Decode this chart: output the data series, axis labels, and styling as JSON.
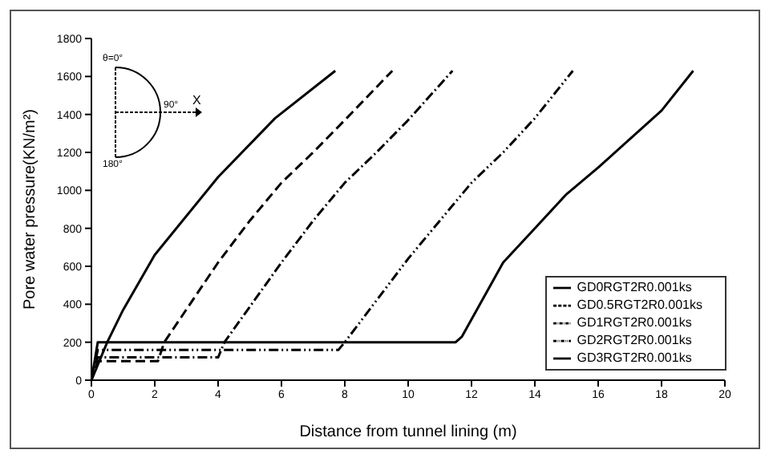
{
  "chart_data": {
    "type": "line",
    "xlabel": "Distance from tunnel lining (m)",
    "ylabel": "Pore water pressure(KN/m²)",
    "xlim": [
      0,
      20
    ],
    "xticks": [
      0,
      2,
      4,
      6,
      8,
      10,
      12,
      14,
      16,
      18,
      20
    ],
    "ylim": [
      0,
      1800
    ],
    "yticks": [
      0,
      200,
      400,
      600,
      800,
      1000,
      1200,
      1400,
      1600,
      1800
    ],
    "legend": "bottom right",
    "marker": "none",
    "annotations": [
      "θ=0°",
      "90°",
      "X",
      "180°"
    ],
    "series": [
      {
        "name": "GD0RGT2R0.001ks",
        "color": "#000000",
        "line_style": "solid",
        "x": [
          0,
          0.5,
          1,
          2,
          4,
          5.8,
          7.7
        ],
        "values": [
          0,
          200,
          370,
          660,
          1070,
          1380,
          1630
        ]
      },
      {
        "name": "GD0.5RGT2R0.001ks",
        "color": "#000000",
        "line_style": "dashed",
        "x": [
          0,
          0.2,
          2.1,
          2.3,
          4,
          5,
          6,
          7,
          8,
          9.5
        ],
        "values": [
          0,
          100,
          100,
          200,
          620,
          840,
          1040,
          1200,
          1370,
          1630
        ]
      },
      {
        "name": "GD1RGT2R0.001ks",
        "color": "#000000",
        "line_style": "dashdot",
        "x": [
          0,
          0.2,
          4,
          4.2,
          6,
          7,
          8,
          9,
          10,
          11.4
        ],
        "values": [
          0,
          120,
          120,
          200,
          620,
          840,
          1040,
          1200,
          1370,
          1630
        ]
      },
      {
        "name": "GD2RGT2R0.001ks",
        "color": "#000000",
        "line_style": "dashdotdot",
        "x": [
          0,
          0.2,
          7.8,
          8,
          10,
          11,
          12,
          13,
          14,
          15.2
        ],
        "values": [
          0,
          160,
          160,
          200,
          640,
          840,
          1040,
          1200,
          1380,
          1630
        ]
      },
      {
        "name": "GD3RGT2R0.001ks",
        "color": "#000000",
        "line_style": "solid",
        "x": [
          0,
          0.2,
          11.5,
          11.7,
          13,
          14,
          15,
          16,
          17,
          18,
          19
        ],
        "values": [
          0,
          200,
          200,
          230,
          620,
          800,
          980,
          1120,
          1270,
          1420,
          1630
        ]
      }
    ]
  }
}
